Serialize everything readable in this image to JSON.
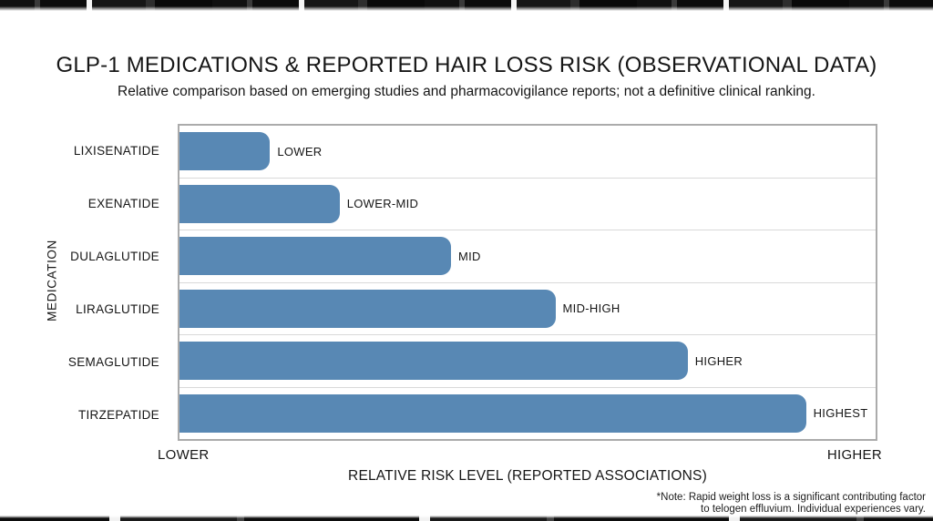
{
  "chart_data": {
    "type": "bar",
    "orientation": "horizontal",
    "title": "GLP-1 MEDICATIONS & REPORTED HAIR LOSS RISK (OBSERVATIONAL DATA)",
    "subtitle": "Relative comparison based on emerging studies and pharmacovigilance reports; not a definitive clinical ranking.",
    "categories": [
      "LIXISENATIDE",
      "EXENATIDE",
      "DULAGLUTIDE",
      "LIRAGLUTIDE",
      "SEMAGLUTIDE",
      "TIRZEPATIDE"
    ],
    "values": [
      13,
      23,
      39,
      54,
      73,
      90
    ],
    "value_labels": [
      "LOWER",
      "LOWER-MID",
      "MID",
      "MID-HIGH",
      "HIGHER",
      "HIGHEST"
    ],
    "xlabel": "RELATIVE RISK LEVEL (REPORTED ASSOCIATIONS)",
    "ylabel": "MEDICATION",
    "x_tick_left": "LOWER",
    "x_tick_right": "HIGHER",
    "xlim": [
      0,
      100
    ],
    "bar_color": "#5888b4",
    "plot_border_color": "#ababab",
    "row_separator_color": "#d9d9d9",
    "grid": "horizontal row separators only",
    "legend": "none"
  },
  "footnote": {
    "line1": "*Note: Rapid weight loss is a significant contributing factor",
    "line2": "to telogen effluvium. Individual experiences vary."
  }
}
